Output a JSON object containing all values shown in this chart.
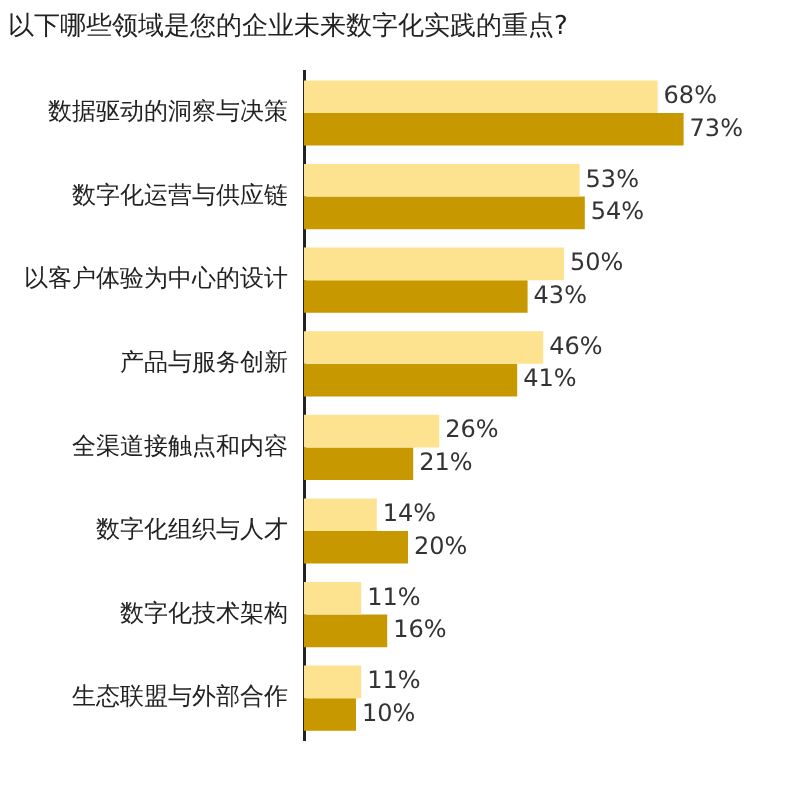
{
  "chart_data": {
    "type": "bar",
    "orientation": "horizontal",
    "title": "以下哪些领域是您的企业未来数字化实践的重点?",
    "categories": [
      "数据驱动的洞察与决策",
      "数字化运营与供应链",
      "以客户体验为中心的设计",
      "产品与服务创新",
      "全渠道接触点和内容",
      "数字化组织与人才",
      "数字化技术架构",
      "生态联盟与外部合作"
    ],
    "series": [
      {
        "color": "#fde28f",
        "values": [
          68,
          53,
          50,
          46,
          26,
          14,
          11,
          11
        ],
        "value_labels": [
          "68%",
          "53%",
          "50%",
          "46%",
          "26%",
          "14%",
          "11%",
          "11%"
        ]
      },
      {
        "color": "#c79800",
        "values": [
          73,
          54,
          43,
          41,
          21,
          20,
          16,
          10
        ],
        "value_labels": [
          "73%",
          "54%",
          "43%",
          "41%",
          "21%",
          "20%",
          "16%",
          "10%"
        ]
      }
    ]
  }
}
